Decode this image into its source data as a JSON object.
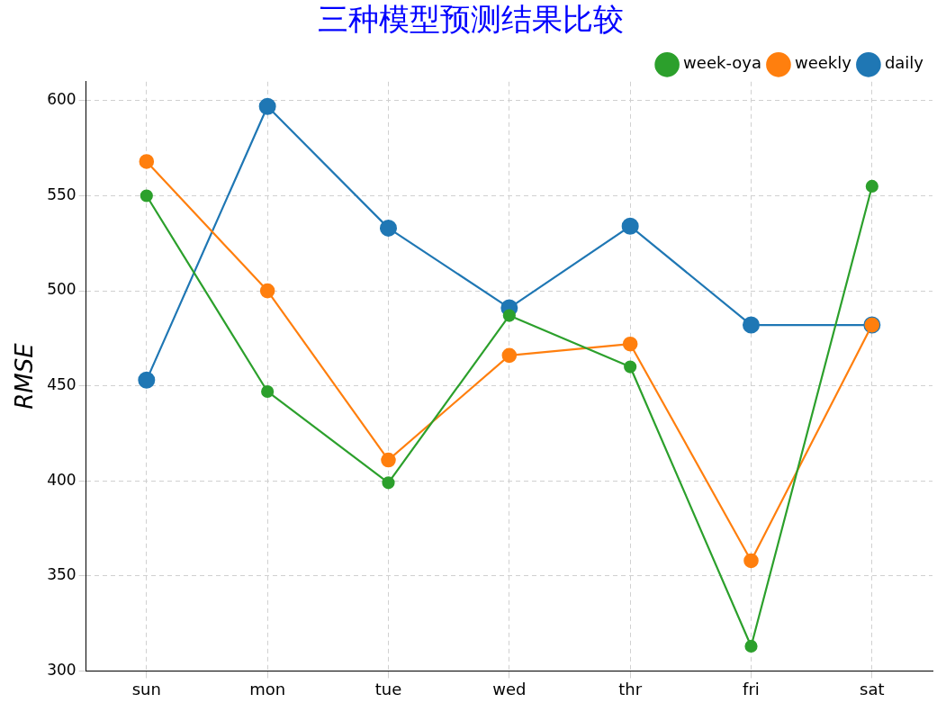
{
  "chart_data": {
    "type": "line",
    "title": "三种模型预测结果比较",
    "ylabel": "RMSE",
    "categories": [
      "sun",
      "mon",
      "tue",
      "wed",
      "thr",
      "fri",
      "sat"
    ],
    "series": [
      {
        "name": "daily",
        "color": "#1f77b4",
        "values": [
          453,
          597,
          533,
          491,
          534,
          482,
          482
        ]
      },
      {
        "name": "weekly",
        "color": "#ff7f0e",
        "values": [
          568,
          500,
          411,
          466,
          472,
          358,
          482
        ]
      },
      {
        "name": "week-oya",
        "color": "#2ca02c",
        "values": [
          550,
          447,
          399,
          487,
          460,
          313,
          555
        ]
      }
    ],
    "ylim": [
      300,
      610
    ],
    "yticks": [
      300,
      350,
      400,
      450,
      500,
      550,
      600
    ],
    "grid": true,
    "legend": "top right",
    "marker": "circle",
    "line_style": "solid"
  }
}
